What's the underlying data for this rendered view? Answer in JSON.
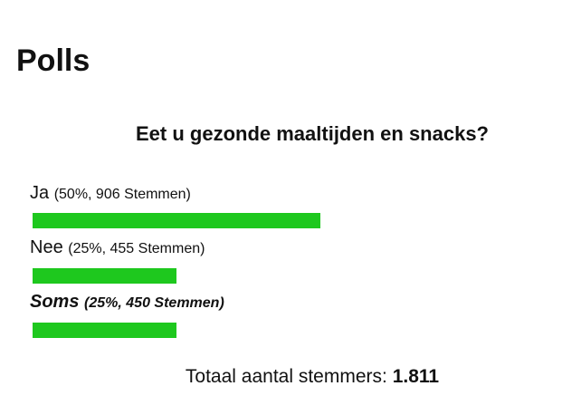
{
  "poll": {
    "title": "Polls",
    "question": "Eet u gezonde maaltijden en snacks?",
    "options": [
      {
        "label": "Ja",
        "detail": "(50%, 906 Stemmen)",
        "percent": 50
      },
      {
        "label": "Nee",
        "detail": "(25%, 455 Stemmen)",
        "percent": 25
      },
      {
        "label": "Soms",
        "detail": "(25%, 450 Stemmen)",
        "percent": 25
      }
    ],
    "total_label": "Totaal aantal stemmers:",
    "total": "1.811"
  }
}
